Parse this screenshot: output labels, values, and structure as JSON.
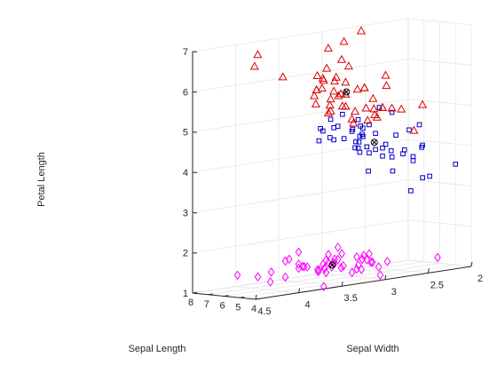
{
  "chart_data": {
    "type": "scatter3d",
    "title": "",
    "xlabel": "Sepal Length",
    "ylabel": "Sepal Width",
    "zlabel": "Petal Length",
    "x_ticks": [
      4,
      5,
      6,
      7,
      8
    ],
    "y_ticks": [
      2,
      2.5,
      3,
      3.5,
      4,
      4.5
    ],
    "z_ticks": [
      1,
      2,
      3,
      4,
      5,
      6,
      7
    ],
    "x_tick_labels": [
      "4",
      "5",
      "6",
      "7",
      "8"
    ],
    "y_tick_labels": [
      "2",
      "2.5",
      "3",
      "3.5",
      "4",
      "4.5"
    ],
    "z_tick_labels": [
      "1",
      "2",
      "3",
      "4",
      "5",
      "6",
      "7"
    ],
    "xlim": [
      4,
      8
    ],
    "ylim": [
      2,
      4.5
    ],
    "zlim": [
      1,
      7
    ],
    "grid": true,
    "legend": "none",
    "series": [
      {
        "marker": "diamond",
        "color": "#ff00ff",
        "points": [
          [
            5.1,
            3.5,
            1.4
          ],
          [
            4.9,
            3.0,
            1.4
          ],
          [
            4.7,
            3.2,
            1.3
          ],
          [
            4.6,
            3.1,
            1.5
          ],
          [
            5.0,
            3.6,
            1.4
          ],
          [
            5.4,
            3.9,
            1.7
          ],
          [
            4.6,
            3.4,
            1.4
          ],
          [
            5.0,
            3.4,
            1.5
          ],
          [
            4.4,
            2.9,
            1.4
          ],
          [
            4.9,
            3.1,
            1.5
          ],
          [
            5.4,
            3.7,
            1.5
          ],
          [
            4.8,
            3.4,
            1.6
          ],
          [
            4.8,
            3.0,
            1.4
          ],
          [
            4.3,
            3.0,
            1.1
          ],
          [
            5.8,
            4.0,
            1.2
          ],
          [
            5.7,
            4.4,
            1.5
          ],
          [
            5.4,
            3.9,
            1.3
          ],
          [
            5.1,
            3.5,
            1.4
          ],
          [
            5.7,
            3.8,
            1.7
          ],
          [
            5.1,
            3.8,
            1.5
          ],
          [
            5.4,
            3.4,
            1.7
          ],
          [
            5.1,
            3.7,
            1.5
          ],
          [
            4.6,
            3.6,
            1.0
          ],
          [
            5.1,
            3.3,
            1.7
          ],
          [
            4.8,
            3.4,
            1.9
          ],
          [
            5.0,
            3.0,
            1.6
          ],
          [
            5.0,
            3.4,
            1.6
          ],
          [
            5.2,
            3.5,
            1.5
          ],
          [
            5.2,
            3.4,
            1.4
          ],
          [
            4.7,
            3.2,
            1.6
          ],
          [
            4.8,
            3.1,
            1.6
          ],
          [
            5.4,
            3.4,
            1.5
          ],
          [
            5.2,
            4.1,
            1.5
          ],
          [
            5.5,
            4.2,
            1.4
          ],
          [
            4.9,
            3.1,
            1.5
          ],
          [
            5.0,
            3.2,
            1.2
          ],
          [
            5.5,
            3.5,
            1.3
          ],
          [
            4.9,
            3.6,
            1.4
          ],
          [
            4.4,
            3.0,
            1.3
          ],
          [
            5.1,
            3.4,
            1.5
          ],
          [
            5.0,
            3.5,
            1.3
          ],
          [
            4.5,
            2.3,
            1.3
          ],
          [
            4.4,
            3.2,
            1.3
          ],
          [
            5.0,
            3.5,
            1.6
          ],
          [
            5.1,
            3.8,
            1.9
          ],
          [
            4.8,
            3.0,
            1.4
          ],
          [
            5.1,
            3.8,
            1.6
          ],
          [
            4.6,
            3.2,
            1.4
          ],
          [
            5.3,
            3.7,
            1.5
          ],
          [
            5.0,
            3.3,
            1.4
          ]
        ]
      },
      {
        "marker": "square",
        "color": "#0000cc",
        "points": [
          [
            7.0,
            3.2,
            4.7
          ],
          [
            6.4,
            3.2,
            4.5
          ],
          [
            6.9,
            3.1,
            4.9
          ],
          [
            5.5,
            2.3,
            4.0
          ],
          [
            6.5,
            2.8,
            4.6
          ],
          [
            5.7,
            2.8,
            4.5
          ],
          [
            6.3,
            3.3,
            4.7
          ],
          [
            4.9,
            2.4,
            3.3
          ],
          [
            6.6,
            2.9,
            4.6
          ],
          [
            5.2,
            2.7,
            3.9
          ],
          [
            5.0,
            2.0,
            3.5
          ],
          [
            5.9,
            3.0,
            4.2
          ],
          [
            6.0,
            2.2,
            4.0
          ],
          [
            6.1,
            2.9,
            4.7
          ],
          [
            5.6,
            2.9,
            3.6
          ],
          [
            6.7,
            3.1,
            4.4
          ],
          [
            5.6,
            3.0,
            4.5
          ],
          [
            5.8,
            2.7,
            4.1
          ],
          [
            6.2,
            2.2,
            4.5
          ],
          [
            5.6,
            2.5,
            3.9
          ],
          [
            5.9,
            3.2,
            4.8
          ],
          [
            6.1,
            2.8,
            4.0
          ],
          [
            6.3,
            2.5,
            4.9
          ],
          [
            6.1,
            2.8,
            4.7
          ],
          [
            6.4,
            2.9,
            4.3
          ],
          [
            6.6,
            3.0,
            4.4
          ],
          [
            6.8,
            2.8,
            4.8
          ],
          [
            6.7,
            3.0,
            5.0
          ],
          [
            6.0,
            2.9,
            4.5
          ],
          [
            5.7,
            2.6,
            3.5
          ],
          [
            5.5,
            2.4,
            3.8
          ],
          [
            5.5,
            2.4,
            3.7
          ],
          [
            5.8,
            2.7,
            3.9
          ],
          [
            6.0,
            2.7,
            5.1
          ],
          [
            5.4,
            3.0,
            4.5
          ],
          [
            6.0,
            3.4,
            4.5
          ],
          [
            6.7,
            3.1,
            4.7
          ],
          [
            6.3,
            2.3,
            4.4
          ],
          [
            5.6,
            3.0,
            4.1
          ],
          [
            5.5,
            2.5,
            4.0
          ],
          [
            5.5,
            2.6,
            4.4
          ],
          [
            6.1,
            3.0,
            4.6
          ],
          [
            5.8,
            2.6,
            4.0
          ],
          [
            5.0,
            2.3,
            3.3
          ],
          [
            5.6,
            2.7,
            4.2
          ],
          [
            5.7,
            3.0,
            4.2
          ],
          [
            5.7,
            2.9,
            4.2
          ],
          [
            6.2,
            2.9,
            4.3
          ],
          [
            5.1,
            2.5,
            3.0
          ],
          [
            5.7,
            2.8,
            4.1
          ]
        ]
      },
      {
        "marker": "triangle",
        "color": "#dd0000",
        "points": [
          [
            6.3,
            3.3,
            6.0
          ],
          [
            5.8,
            2.7,
            5.1
          ],
          [
            7.1,
            3.0,
            5.9
          ],
          [
            6.3,
            2.9,
            5.6
          ],
          [
            6.5,
            3.0,
            5.8
          ],
          [
            7.6,
            3.0,
            6.6
          ],
          [
            4.9,
            2.5,
            4.5
          ],
          [
            7.3,
            2.9,
            6.3
          ],
          [
            6.7,
            2.5,
            5.8
          ],
          [
            7.2,
            3.6,
            6.1
          ],
          [
            6.5,
            3.2,
            5.1
          ],
          [
            6.4,
            2.7,
            5.3
          ],
          [
            6.8,
            3.0,
            5.5
          ],
          [
            5.7,
            2.5,
            5.0
          ],
          [
            5.8,
            2.8,
            5.1
          ],
          [
            6.4,
            3.2,
            5.3
          ],
          [
            6.5,
            3.0,
            5.5
          ],
          [
            7.7,
            3.8,
            6.7
          ],
          [
            7.7,
            2.6,
            6.9
          ],
          [
            6.0,
            2.2,
            5.0
          ],
          [
            6.9,
            3.2,
            5.7
          ],
          [
            5.6,
            2.8,
            4.9
          ],
          [
            7.7,
            2.8,
            6.7
          ],
          [
            6.3,
            2.7,
            4.9
          ],
          [
            6.7,
            3.3,
            5.7
          ],
          [
            7.2,
            3.2,
            6.0
          ],
          [
            6.2,
            2.8,
            4.8
          ],
          [
            6.1,
            3.0,
            4.9
          ],
          [
            6.4,
            2.8,
            5.6
          ],
          [
            7.2,
            3.0,
            5.8
          ],
          [
            7.4,
            2.8,
            6.1
          ],
          [
            7.9,
            3.8,
            6.4
          ],
          [
            6.4,
            2.8,
            5.6
          ],
          [
            6.3,
            2.8,
            5.1
          ],
          [
            6.1,
            2.6,
            5.6
          ],
          [
            7.7,
            3.0,
            6.1
          ],
          [
            6.3,
            3.4,
            5.6
          ],
          [
            6.4,
            3.1,
            5.5
          ],
          [
            6.0,
            3.0,
            4.8
          ],
          [
            6.9,
            3.1,
            5.4
          ],
          [
            6.7,
            3.1,
            5.6
          ],
          [
            6.9,
            3.1,
            5.1
          ],
          [
            5.8,
            2.7,
            5.1
          ],
          [
            6.8,
            3.2,
            5.9
          ],
          [
            6.7,
            3.3,
            5.7
          ],
          [
            6.7,
            3.0,
            5.2
          ],
          [
            6.3,
            2.5,
            5.0
          ],
          [
            6.5,
            3.0,
            5.2
          ],
          [
            6.2,
            3.4,
            5.4
          ],
          [
            5.9,
            3.0,
            5.1
          ]
        ]
      }
    ],
    "centroids": {
      "marker": "circle-x",
      "color": "#000000",
      "points": [
        [
          5.006,
          3.428,
          1.462
        ],
        [
          5.936,
          2.77,
          4.26
        ],
        [
          6.588,
          2.974,
          5.552
        ]
      ]
    }
  }
}
